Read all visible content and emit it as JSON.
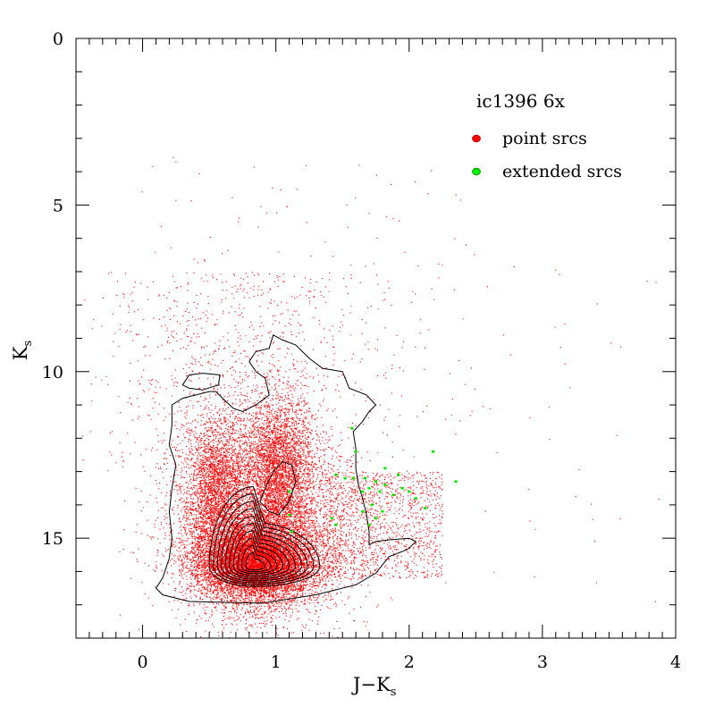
{
  "chart_data": {
    "type": "scatter",
    "title": "ic1396 6x",
    "xlabel": "J−K",
    "xlabel_sub": "s",
    "ylabel": "K",
    "ylabel_sub": "s",
    "xlim": [
      -0.5,
      4
    ],
    "ylim": [
      18,
      0
    ],
    "y_inverted": true,
    "x_major_ticks": [
      0,
      1,
      2,
      3,
      4
    ],
    "x_minor_step": 0.1,
    "y_major_ticks": [
      0,
      5,
      10,
      15
    ],
    "y_minor_step": 1,
    "tick_labels_x": [
      "0",
      "1",
      "2",
      "3",
      "4"
    ],
    "tick_labels_y": [
      "0",
      "5",
      "10",
      "15"
    ],
    "grid": false,
    "legend_position": "top-right",
    "colors": {
      "point": "#ff0000",
      "extended": "#00ee00",
      "contour": "#000000"
    },
    "series": [
      {
        "name": "point srcs",
        "color": "#ff0000",
        "description_density": [
          {
            "x": 0.85,
            "y": 15.8,
            "peak": true
          },
          {
            "x": 1.0,
            "y": 12.8
          },
          {
            "x": 0.55,
            "y": 13.5
          }
        ]
      },
      {
        "name": "extended srcs",
        "color": "#00ee00",
        "points": [
          [
            1.57,
            11.7
          ],
          [
            2.18,
            12.4
          ],
          [
            1.6,
            12.4
          ],
          [
            1.82,
            12.9
          ],
          [
            1.92,
            13.1
          ],
          [
            1.45,
            13.1
          ],
          [
            1.52,
            13.2
          ],
          [
            1.58,
            13.2
          ],
          [
            1.67,
            13.2
          ],
          [
            2.35,
            13.3
          ],
          [
            1.75,
            13.3
          ],
          [
            1.82,
            13.4
          ],
          [
            1.95,
            13.5
          ],
          [
            1.7,
            13.5
          ],
          [
            1.78,
            13.6
          ],
          [
            2.0,
            13.6
          ],
          [
            1.88,
            13.7
          ],
          [
            1.65,
            13.6
          ],
          [
            1.1,
            13.6
          ],
          [
            2.05,
            13.8
          ],
          [
            1.72,
            14.0
          ],
          [
            1.8,
            14.2
          ],
          [
            2.12,
            14.1
          ],
          [
            1.65,
            14.2
          ],
          [
            1.75,
            14.4
          ],
          [
            1.1,
            14.3
          ],
          [
            1.42,
            14.4
          ],
          [
            1.7,
            14.6
          ],
          [
            1.12,
            14.8
          ],
          [
            1.45,
            14.6
          ]
        ]
      }
    ],
    "legend": [
      {
        "label": "point srcs",
        "color": "#ff0000"
      },
      {
        "label": "extended srcs",
        "color": "#00ee00"
      }
    ]
  }
}
